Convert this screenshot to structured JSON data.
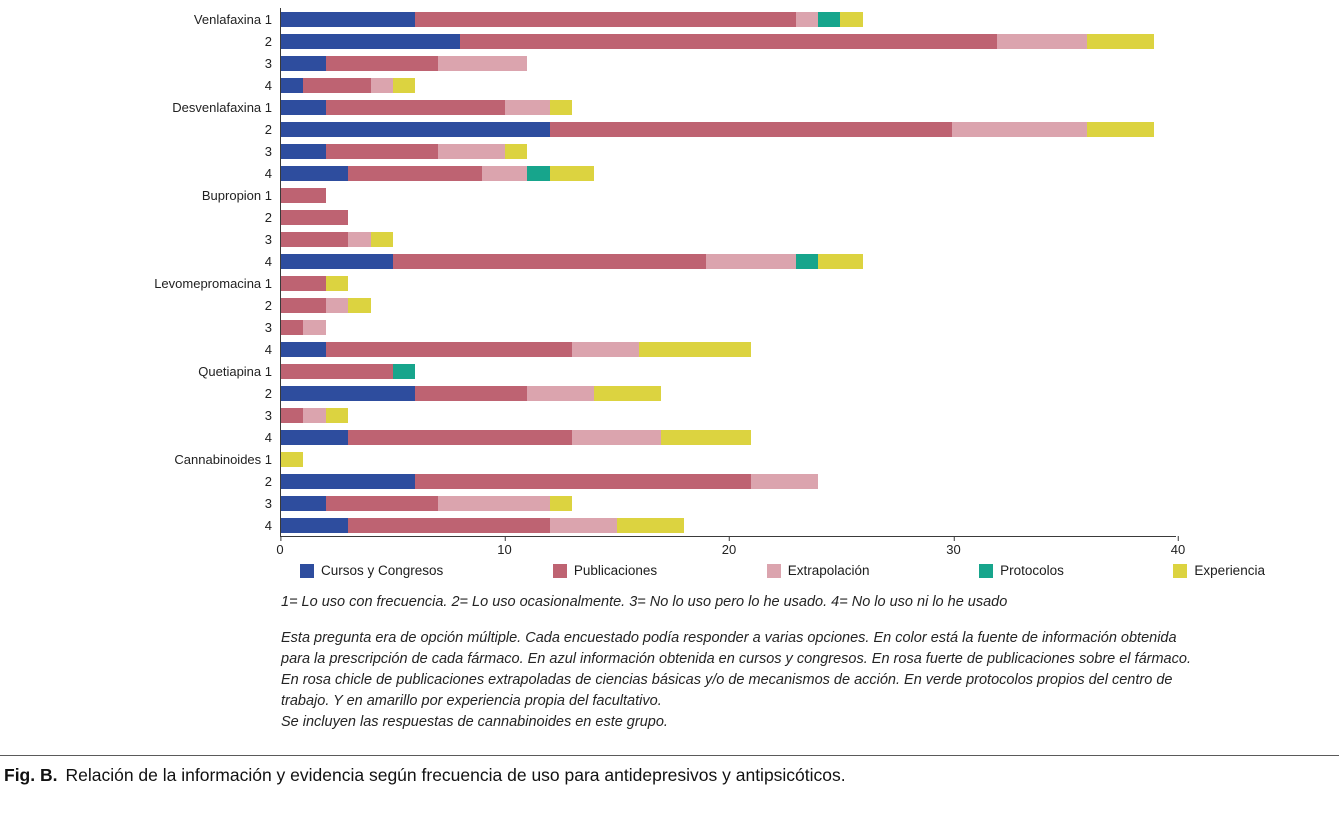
{
  "chart_data": {
    "type": "bar",
    "orientation": "horizontal",
    "title": "",
    "xlabel": "",
    "ylabel": "",
    "xlim": [
      0,
      40
    ],
    "xticks": [
      0,
      10,
      20,
      30,
      40
    ],
    "grid": false,
    "legend_position": "bottom",
    "legend": [
      {
        "name": "Cursos y Congresos",
        "color": "#2E4D9E"
      },
      {
        "name": "Publicaciones",
        "color": "#BE6372"
      },
      {
        "name": "Extrapolación",
        "color": "#DBA4AE"
      },
      {
        "name": "Protocolos",
        "color": "#17A58C"
      },
      {
        "name": "Experiencia",
        "color": "#DCD340"
      }
    ],
    "rows": [
      {
        "label": "Venlafaxina 1",
        "values": [
          6,
          17,
          1,
          1,
          1
        ]
      },
      {
        "label": "2",
        "values": [
          8,
          24,
          4,
          0,
          3
        ]
      },
      {
        "label": "3",
        "values": [
          2,
          5,
          4,
          0,
          0
        ]
      },
      {
        "label": "4",
        "values": [
          1,
          3,
          1,
          0,
          1
        ]
      },
      {
        "label": "Desvenlafaxina 1",
        "values": [
          2,
          8,
          2,
          0,
          1
        ]
      },
      {
        "label": "2",
        "values": [
          12,
          18,
          6,
          0,
          3
        ]
      },
      {
        "label": "3",
        "values": [
          2,
          5,
          3,
          0,
          1
        ]
      },
      {
        "label": "4",
        "values": [
          3,
          6,
          2,
          1,
          2
        ]
      },
      {
        "label": "Bupropion 1",
        "values": [
          0,
          2,
          0,
          0,
          0
        ]
      },
      {
        "label": "2",
        "values": [
          0,
          3,
          0,
          0,
          0
        ]
      },
      {
        "label": "3",
        "values": [
          0,
          3,
          1,
          0,
          1
        ]
      },
      {
        "label": "4",
        "values": [
          5,
          14,
          4,
          1,
          2
        ]
      },
      {
        "label": "Levomepromacina 1",
        "values": [
          0,
          2,
          0,
          0,
          1
        ]
      },
      {
        "label": "2",
        "values": [
          0,
          2,
          1,
          0,
          1
        ]
      },
      {
        "label": "3",
        "values": [
          0,
          1,
          1,
          0,
          0
        ]
      },
      {
        "label": "4",
        "values": [
          2,
          11,
          3,
          0,
          5
        ]
      },
      {
        "label": "Quetiapina 1",
        "values": [
          0,
          5,
          0,
          1,
          0
        ]
      },
      {
        "label": "2",
        "values": [
          6,
          5,
          3,
          0,
          3
        ]
      },
      {
        "label": "3",
        "values": [
          0,
          1,
          1,
          0,
          1
        ]
      },
      {
        "label": "4",
        "values": [
          3,
          10,
          4,
          0,
          4
        ]
      },
      {
        "label": "Cannabinoides 1",
        "values": [
          0,
          0,
          0,
          0,
          1
        ]
      },
      {
        "label": "2",
        "values": [
          6,
          15,
          3,
          0,
          0
        ]
      },
      {
        "label": "3",
        "values": [
          2,
          5,
          5,
          0,
          1
        ]
      },
      {
        "label": "4",
        "values": [
          3,
          9,
          3,
          0,
          3
        ]
      }
    ]
  },
  "notes": {
    "frequency_key": "1= Lo uso con frecuencia. 2= Lo uso ocasionalmente. 3= No lo uso pero lo he usado. 4= No lo uso ni lo he usado",
    "method_note": "Esta pregunta era de opción múltiple. Cada encuestado podía responder a varias opciones. En color está la fuente de información obtenida para la prescripción de cada fármaco. En azul información obtenida en cursos y congresos. En rosa fuerte de publicaciones sobre el fármaco. En rosa chicle de publicaciones extrapoladas de ciencias básicas y/o de mecanismos de acción. En verde protocolos propios del centro de trabajo. Y en amarillo por experiencia propia del facultativo.",
    "inclusion_note": "Se incluyen las respuestas de cannabinoides en este grupo."
  },
  "caption": {
    "label": "Fig. B.",
    "text": "Relación de la información y evidencia según frecuencia de uso para antidepresivos y antipsicóticos."
  }
}
